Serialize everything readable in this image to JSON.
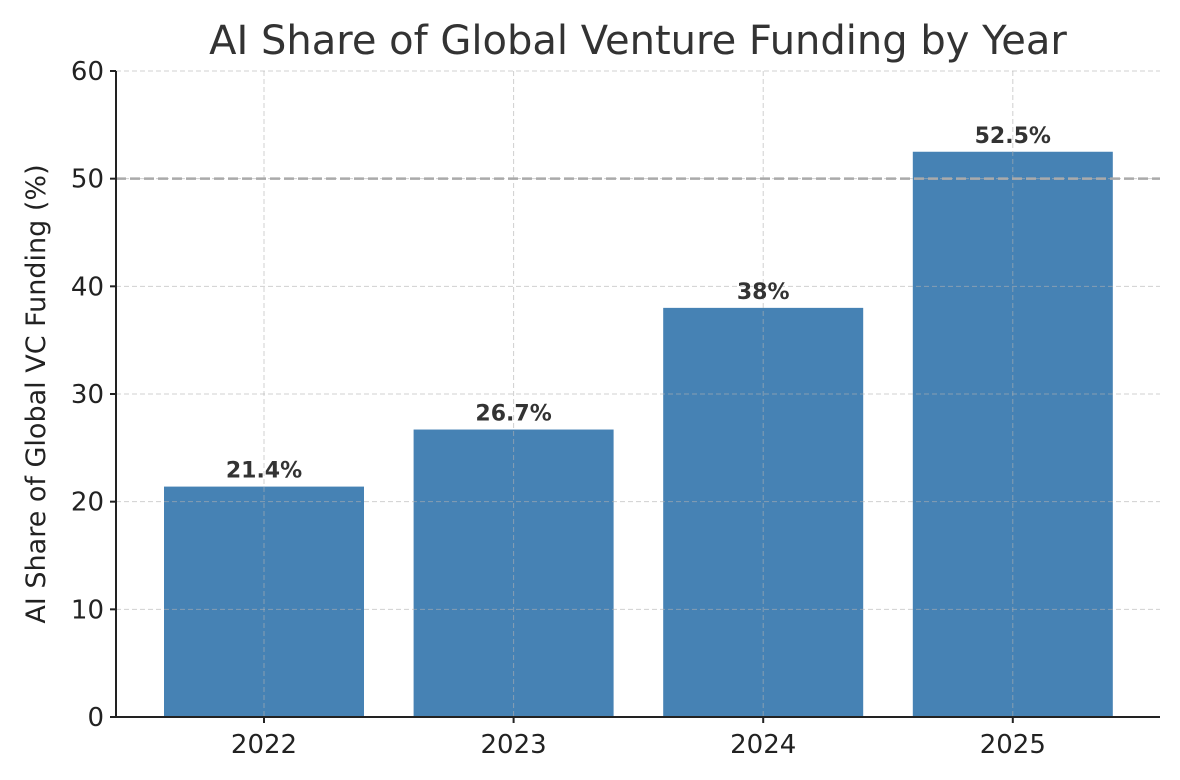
{
  "chart_data": {
    "type": "bar",
    "title": "AI Share of Global Venture Funding by Year",
    "xlabel": "",
    "ylabel": "AI Share of Global VC Funding (%)",
    "categories": [
      "2022",
      "2023",
      "2024",
      "2025"
    ],
    "values": [
      21.4,
      26.7,
      38,
      52.5
    ],
    "data_labels": [
      "21.4%",
      "26.7%",
      "38%",
      "52.5%"
    ],
    "ylim": [
      0,
      60
    ],
    "yticks": [
      0,
      10,
      20,
      30,
      40,
      50,
      60
    ],
    "grid": true,
    "reference_line": {
      "y": 50,
      "style": "dashed",
      "color": "#aaaaaa"
    },
    "bar_color": "#4682B4"
  }
}
